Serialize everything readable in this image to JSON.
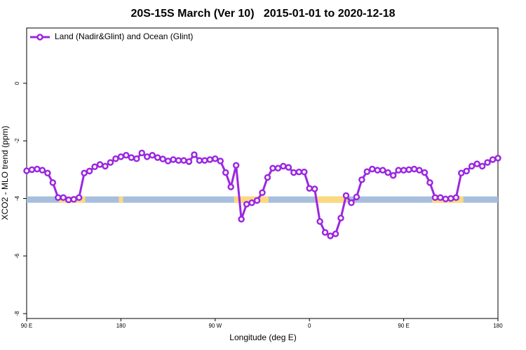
{
  "chart_data": {
    "type": "line",
    "title": "20S-15S March (Ver 10)   2015-01-01 to 2020-12-18",
    "xlabel": "Longitude (deg E)",
    "ylabel": "XCO2 - MLO trend (ppm)",
    "xlim": [
      90,
      540
    ],
    "ylim": [
      -8.17,
      1.92
    ],
    "xticks": [
      {
        "value": 90,
        "label": "90 E"
      },
      {
        "value": 180,
        "label": "180"
      },
      {
        "value": 270,
        "label": "90 W"
      },
      {
        "value": 360,
        "label": "0"
      },
      {
        "value": 450,
        "label": "90 E"
      },
      {
        "value": 540,
        "label": "180"
      }
    ],
    "yticks": [
      0,
      -2,
      -4,
      -6,
      -8
    ],
    "legend": "top-left",
    "strip": {
      "y": [
        -3.93,
        -4.15
      ],
      "color": "#a7bedd",
      "highlight_color": "#fdd87f",
      "highlight_ranges": [
        [
          121,
          146
        ],
        [
          178,
          182
        ],
        [
          288,
          321
        ],
        [
          366,
          396
        ],
        [
          477,
          507
        ]
      ]
    },
    "x": [
      90,
      95,
      100,
      105,
      110,
      115,
      120,
      125,
      130,
      135,
      140,
      145,
      150,
      155,
      160,
      165,
      170,
      175,
      180,
      185,
      190,
      195,
      200,
      205,
      210,
      215,
      220,
      225,
      230,
      235,
      240,
      245,
      250,
      255,
      260,
      265,
      270,
      275,
      280,
      285,
      290,
      295,
      300,
      305,
      310,
      315,
      320,
      325,
      330,
      335,
      340,
      345,
      350,
      355,
      360,
      365,
      370,
      375,
      380,
      385,
      390,
      395,
      400,
      405,
      410,
      415,
      420,
      425,
      430,
      435,
      440,
      445,
      450,
      455,
      460,
      465,
      470,
      475,
      480,
      485,
      490,
      495,
      500,
      505,
      510,
      515,
      520,
      525,
      530,
      535,
      540
    ],
    "series": [
      {
        "name": "Land (Nadir&Glint) and Ocean (Glint)",
        "color": "#9b27e0",
        "values": [
          -3.04,
          -3.0,
          -2.98,
          -3.02,
          -3.12,
          -3.45,
          -3.97,
          -3.97,
          -4.05,
          -4.03,
          -3.97,
          -3.12,
          -3.05,
          -2.9,
          -2.82,
          -2.88,
          -2.75,
          -2.62,
          -2.55,
          -2.5,
          -2.58,
          -2.62,
          -2.42,
          -2.55,
          -2.5,
          -2.58,
          -2.63,
          -2.7,
          -2.65,
          -2.68,
          -2.68,
          -2.72,
          -2.48,
          -2.68,
          -2.68,
          -2.65,
          -2.62,
          -2.7,
          -3.1,
          -3.6,
          -2.85,
          -4.72,
          -4.2,
          -4.15,
          -4.07,
          -3.8,
          -3.27,
          -2.95,
          -2.95,
          -2.88,
          -2.92,
          -3.1,
          -3.08,
          -3.08,
          -3.65,
          -3.67,
          -4.8,
          -5.18,
          -5.3,
          -5.23,
          -4.68,
          -3.9,
          -4.15,
          -3.95,
          -3.35,
          -3.07,
          -2.98,
          -3.02,
          -3.02,
          -3.1,
          -3.2,
          -3.02,
          -3.02,
          -3.0,
          -2.98,
          -3.02,
          -3.1,
          -3.45,
          -3.97,
          -3.97,
          -4.02,
          -4.0,
          -3.97,
          -3.12,
          -3.05,
          -2.88,
          -2.8,
          -2.88,
          -2.75,
          -2.65,
          -2.6
        ]
      }
    ]
  }
}
